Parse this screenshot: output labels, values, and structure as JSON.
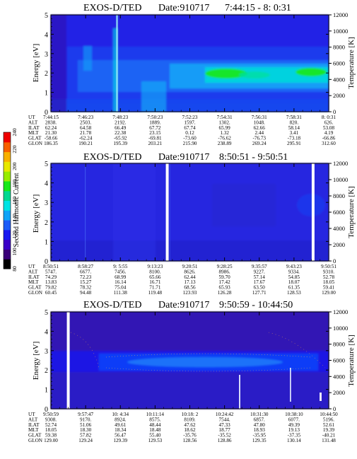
{
  "chart_data": [
    {
      "type": "heatmap",
      "title": "EXOS-D/TED",
      "date_label": "Date:910717",
      "time_range": "7:44:15 - 8: 0:31",
      "ylabel": "Energy [eV]",
      "y2label": "Temperature [K]",
      "y_ticks": [
        "0",
        "1",
        "2",
        "3",
        "4",
        "5"
      ],
      "y2_ticks": [
        "0",
        "2000",
        "4000",
        "6000",
        "8000",
        "10000",
        "12000"
      ],
      "ylim": [
        0,
        5
      ],
      "y2lim": [
        0,
        12000
      ],
      "columns": [
        {
          "UT": "7:44:15",
          "ALT": "2838.",
          "ILAT": "62.24",
          "MLT": "21.30",
          "GLAT": "-58.66",
          "GLON": "186.35"
        },
        {
          "UT": "7:46:23",
          "ALT": "2503.",
          "ILAT": "64.58",
          "MLT": "21.78",
          "GLAT": "-62.24",
          "GLON": "190.21"
        },
        {
          "UT": "7:48:23",
          "ALT": "2192.",
          "ILAT": "66.49",
          "MLT": "22.38",
          "GLAT": "-65.92",
          "GLON": "195.39"
        },
        {
          "UT": "7:50:23",
          "ALT": "1889.",
          "ILAT": "67.72",
          "MLT": "23.15",
          "GLAT": "-69.81",
          "GLON": "203.21"
        },
        {
          "UT": "7:52:23",
          "ALT": "1597.",
          "ILAT": "67.74",
          "MLT": "0.12",
          "GLAT": "-73.60",
          "GLON": "215.90"
        },
        {
          "UT": "7:54:31",
          "ALT": "1302.",
          "ILAT": "65.99",
          "MLT": "1.32",
          "GLAT": "-76.62",
          "GLON": "238.89"
        },
        {
          "UT": "7:56:31",
          "ALT": "1048.",
          "ILAT": "62.66",
          "MLT": "2.44",
          "GLAT": "-76.73",
          "GLON": "269.24"
        },
        {
          "UT": "7:58:31",
          "ALT": "820.",
          "ILAT": "58.14",
          "MLT": "3.41",
          "GLAT": "-73.18",
          "GLON": "295.91"
        },
        {
          "UT": "8: 0:31",
          "ALT": "626.",
          "ILAT": "53.08",
          "MLT": "4.19",
          "GLAT": "-66.86",
          "GLON": "312.60"
        }
      ],
      "gaps_at_column": []
    },
    {
      "type": "heatmap",
      "title": "EXOS-D/TED",
      "date_label": "Date:910717",
      "time_range": "8:50:51 - 9:50:51",
      "ylabel": "Energy [eV]",
      "y2label": "Temperature [K]",
      "y_ticks": [
        "0",
        "1",
        "2",
        "3",
        "4",
        "5"
      ],
      "y2_ticks": [
        "0",
        "2000",
        "4000",
        "6000",
        "8000",
        "10000",
        "12000"
      ],
      "ylim": [
        0,
        5
      ],
      "y2lim": [
        0,
        12000
      ],
      "columns": [
        {
          "UT": "8:50:51",
          "ALT": "5747.",
          "ILAT": "74.29",
          "MLT": "13.83",
          "GLAT": "79.82",
          "GLON": "60.45"
        },
        {
          "UT": "8:58:27",
          "ALT": "6677.",
          "ILAT": "72.23",
          "MLT": "15.27",
          "GLAT": "78.32",
          "GLON": "94.48"
        },
        {
          "UT": "9: 5:55",
          "ALT": "7456.",
          "ILAT": "68.99",
          "MLT": "16.14",
          "GLAT": "75.04",
          "GLON": "111.38"
        },
        {
          "UT": "9:13:23",
          "ALT": "8100.",
          "ILAT": "65.66",
          "MLT": "16.71",
          "GLAT": "71.71",
          "GLON": "119.48"
        },
        {
          "UT": "9:20:51",
          "ALT": "8626.",
          "ILAT": "62.44",
          "MLT": "17.13",
          "GLAT": "68.56",
          "GLON": "123.93"
        },
        {
          "UT": "9:28:25",
          "ALT": "8986.",
          "ILAT": "59.70",
          "MLT": "17.42",
          "GLAT": "65.93",
          "GLON": "126.28"
        },
        {
          "UT": "9:35:57",
          "ALT": "9227.",
          "ILAT": "57.14",
          "MLT": "17.67",
          "GLAT": "63.50",
          "GLON": "127.71"
        },
        {
          "UT": "9:43:23",
          "ALT": "9334.",
          "ILAT": "54.85",
          "MLT": "18.07",
          "GLAT": "61.35",
          "GLON": "128.53"
        },
        {
          "UT": "9:50:51",
          "ALT": "9310.",
          "ILAT": "52.78",
          "MLT": "18.05",
          "GLAT": "59.41",
          "GLON": "129.00"
        }
      ],
      "gaps_at_column": [
        3.35,
        7.55
      ]
    },
    {
      "type": "heatmap",
      "title": "EXOS-D/TED",
      "date_label": "Date:910717",
      "time_range": "9:50:59 - 10:44:50",
      "ylabel": "Energy [eV]",
      "y2label": "Temperature [K]",
      "y_ticks": [
        "0",
        "1",
        "2",
        "3",
        "4",
        "5"
      ],
      "y2_ticks": [
        "0",
        "2000",
        "4000",
        "6000",
        "8000",
        "10000",
        "12000"
      ],
      "ylim": [
        0,
        5
      ],
      "y2lim": [
        0,
        12000
      ],
      "columns": [
        {
          "UT": "9:50:59",
          "ALT": "9308.",
          "ILAT": "52.74",
          "MLT": "18.05",
          "GLAT": "59.38",
          "GLON": "129.00"
        },
        {
          "UT": "9:57:47",
          "ALT": "9170.",
          "ILAT": "51.06",
          "MLT": "18.30",
          "GLAT": "57.82",
          "GLON": "129.24"
        },
        {
          "UT": "10: 4:34",
          "ALT": "8924.",
          "ILAT": "49.61",
          "MLT": "18.34",
          "GLAT": "56.47",
          "GLON": "129.39"
        },
        {
          "UT": "10:11:14",
          "ALT": "8575.",
          "ILAT": "48.44",
          "MLT": "18.48",
          "GLAT": "55.40",
          "GLON": "129.53"
        },
        {
          "UT": "10:18: 2",
          "ALT": "8109.",
          "ILAT": "47.62",
          "MLT": "18.62",
          "GLAT": "-35.76",
          "GLON": "128.56"
        },
        {
          "UT": "10:24:42",
          "ALT": "7544.",
          "ILAT": "47.33",
          "MLT": "18.77",
          "GLAT": "-35.52",
          "GLON": "128.86"
        },
        {
          "UT": "10:31:30",
          "ALT": "6857.",
          "ILAT": "47.80",
          "MLT": "18.93",
          "GLAT": "-35.95",
          "GLON": "129.35"
        },
        {
          "UT": "10:38:10",
          "ALT": "6077.",
          "ILAT": "49.39",
          "MLT": "19.13",
          "GLAT": "-37.35",
          "GLON": "130.14"
        },
        {
          "UT": "10:44:50",
          "ALT": "5196.",
          "ILAT": "52.61",
          "MLT": "19.39",
          "GLAT": "-40.21",
          "GLON": "131.48"
        }
      ],
      "gaps_at_column": [
        0.5
      ]
    }
  ],
  "row_labels": [
    "UT",
    "ALT",
    "ILAT",
    "MLT",
    "GLAT",
    "GLON"
  ],
  "colorbar": {
    "label": "Second Harmonic Current",
    "ticks": [
      "80",
      "100",
      "120",
      "140",
      "160",
      "180",
      "200",
      "220",
      "240"
    ],
    "range": [
      80,
      240
    ],
    "colors": [
      "#000000",
      "#3a0078",
      "#3a00c8",
      "#1818f0",
      "#1c5cf8",
      "#10a4f8",
      "#00e4e4",
      "#00d890",
      "#18e818",
      "#98ec00",
      "#e8e800",
      "#f8b000",
      "#f86000",
      "#f00000"
    ]
  }
}
